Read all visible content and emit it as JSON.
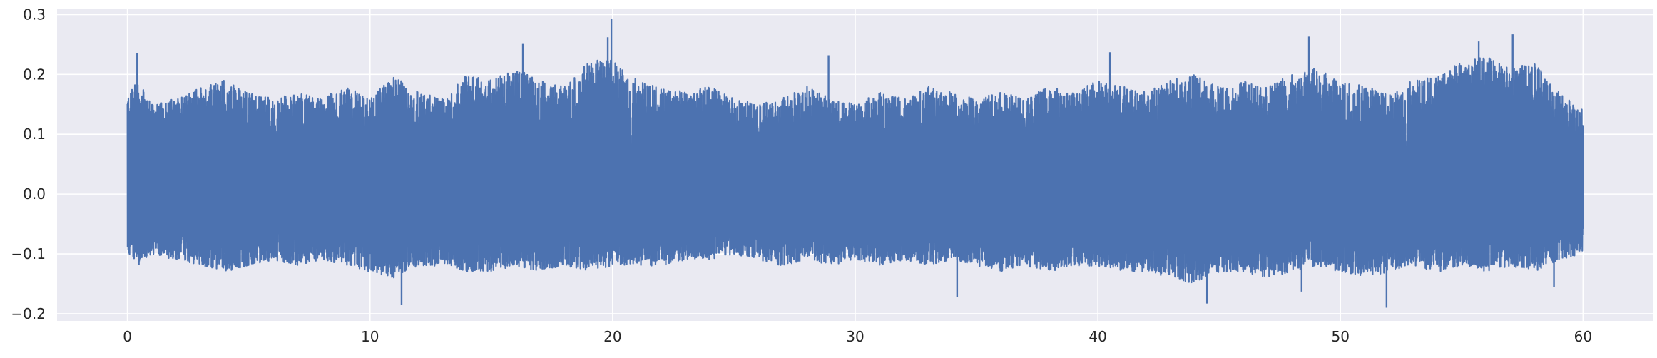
{
  "chart_data": {
    "type": "line",
    "title": "",
    "xlabel": "",
    "ylabel": "",
    "xlim": [
      -2.9,
      62.9
    ],
    "ylim": [
      -0.212,
      0.31
    ],
    "x_ticks": [
      0,
      10,
      20,
      30,
      40,
      50,
      60
    ],
    "y_ticks": [
      -0.2,
      -0.1,
      0.0,
      0.1,
      0.2,
      0.3
    ],
    "x_tick_labels": [
      "0",
      "10",
      "20",
      "30",
      "40",
      "50",
      "60"
    ],
    "y_tick_labels": [
      "−0.2",
      "−0.1",
      "0.0",
      "0.1",
      "0.2",
      "0.3"
    ],
    "grid": true,
    "legend": false,
    "style": "seaborn darkgrid",
    "colors": {
      "line": "#4c72b0",
      "plot_background": "#eaeaf2",
      "grid": "#ffffff"
    },
    "series": [
      {
        "x_range": [
          0,
          60
        ],
        "envelope_x": [
          0,
          0.5,
          1,
          2,
          3,
          4,
          5,
          6,
          7,
          8,
          9,
          10,
          11,
          12,
          13,
          14,
          15,
          16,
          17,
          18,
          19,
          20,
          21,
          22,
          23,
          24,
          25,
          26,
          27,
          28,
          29,
          30,
          31,
          32,
          33,
          34,
          35,
          36,
          37,
          38,
          39,
          40,
          41,
          42,
          43,
          44,
          45,
          46,
          47,
          48,
          49,
          50,
          51,
          52,
          53,
          54,
          55,
          56,
          57,
          58,
          59,
          60
        ],
        "envelope_upper": [
          0.17,
          0.19,
          0.15,
          0.16,
          0.18,
          0.19,
          0.17,
          0.16,
          0.17,
          0.16,
          0.18,
          0.16,
          0.2,
          0.17,
          0.16,
          0.2,
          0.19,
          0.21,
          0.19,
          0.18,
          0.22,
          0.23,
          0.19,
          0.18,
          0.17,
          0.18,
          0.16,
          0.15,
          0.16,
          0.18,
          0.16,
          0.15,
          0.17,
          0.16,
          0.18,
          0.17,
          0.16,
          0.17,
          0.16,
          0.18,
          0.17,
          0.19,
          0.18,
          0.17,
          0.19,
          0.2,
          0.18,
          0.19,
          0.18,
          0.2,
          0.21,
          0.19,
          0.18,
          0.17,
          0.19,
          0.2,
          0.22,
          0.23,
          0.21,
          0.22,
          0.17,
          0.14
        ],
        "envelope_lower": [
          -0.1,
          -0.12,
          -0.1,
          -0.11,
          -0.12,
          -0.13,
          -0.12,
          -0.11,
          -0.12,
          -0.11,
          -0.12,
          -0.13,
          -0.14,
          -0.12,
          -0.12,
          -0.13,
          -0.13,
          -0.12,
          -0.13,
          -0.12,
          -0.13,
          -0.12,
          -0.12,
          -0.12,
          -0.11,
          -0.11,
          -0.1,
          -0.11,
          -0.12,
          -0.11,
          -0.12,
          -0.11,
          -0.12,
          -0.11,
          -0.12,
          -0.11,
          -0.12,
          -0.13,
          -0.12,
          -0.13,
          -0.12,
          -0.12,
          -0.13,
          -0.13,
          -0.14,
          -0.15,
          -0.13,
          -0.13,
          -0.14,
          -0.13,
          -0.12,
          -0.13,
          -0.14,
          -0.13,
          -0.12,
          -0.13,
          -0.12,
          -0.13,
          -0.12,
          -0.13,
          -0.11,
          -0.1
        ],
        "spikes": [
          {
            "x": 0.4,
            "y": 0.235
          },
          {
            "x": 11.3,
            "y": -0.185
          },
          {
            "x": 16.3,
            "y": 0.252
          },
          {
            "x": 19.95,
            "y": 0.293
          },
          {
            "x": 19.8,
            "y": 0.262
          },
          {
            "x": 28.9,
            "y": 0.232
          },
          {
            "x": 34.2,
            "y": -0.172
          },
          {
            "x": 40.5,
            "y": 0.237
          },
          {
            "x": 44.5,
            "y": -0.183
          },
          {
            "x": 48.4,
            "y": -0.163
          },
          {
            "x": 48.7,
            "y": 0.263
          },
          {
            "x": 51.9,
            "y": -0.19
          },
          {
            "x": 55.7,
            "y": 0.255
          },
          {
            "x": 57.1,
            "y": 0.267
          },
          {
            "x": 58.8,
            "y": -0.155
          }
        ]
      }
    ]
  }
}
